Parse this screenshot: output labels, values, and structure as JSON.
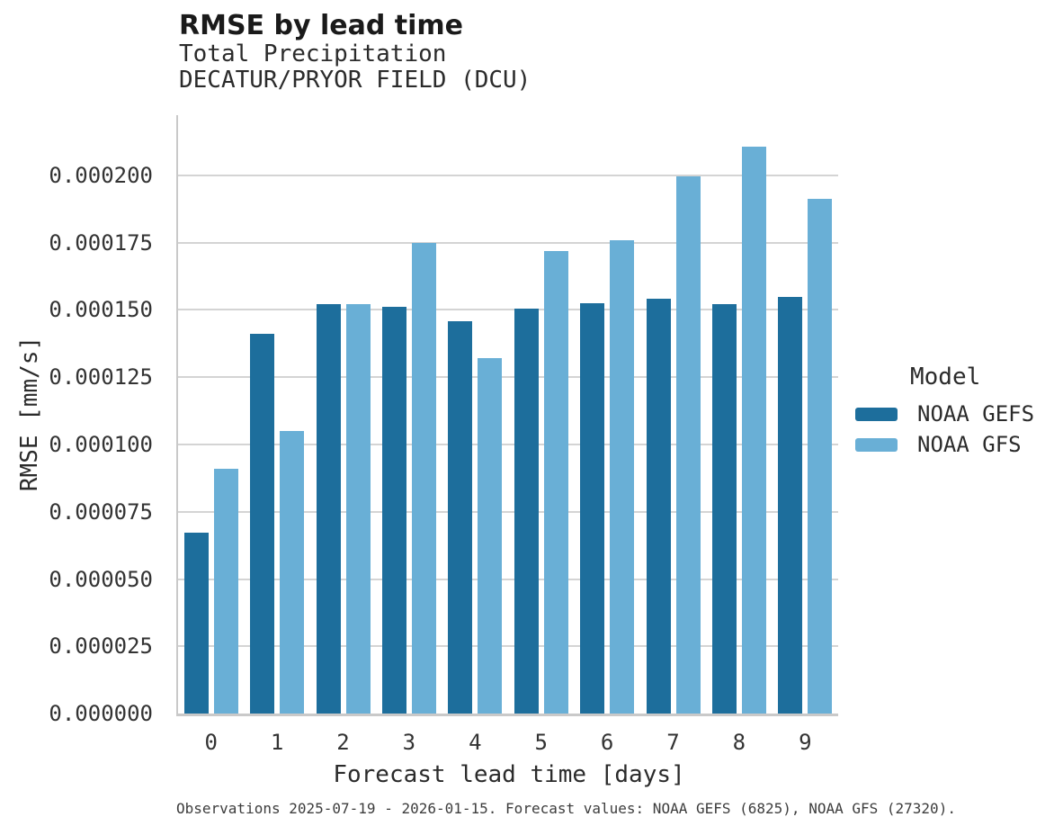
{
  "header": {
    "title": "RMSE by lead time",
    "subtitle_variable": "Total Precipitation",
    "subtitle_station": "DECATUR/PRYOR FIELD (DCU)"
  },
  "legend": {
    "title": "Model"
  },
  "footer": {
    "caption": "Observations 2025-07-19 - 2026-01-15. Forecast values: NOAA GEFS (6825), NOAA GFS (27320)."
  },
  "chart_data": {
    "type": "bar",
    "title": "RMSE by lead time",
    "subtitle": [
      "Total Precipitation",
      "DECATUR/PRYOR FIELD (DCU)"
    ],
    "categories": [
      0,
      1,
      2,
      3,
      4,
      5,
      6,
      7,
      8,
      9
    ],
    "series": [
      {
        "name": "NOAA GEFS",
        "color": "#1d6e9c",
        "values": [
          6.73e-05,
          0.0001411,
          0.0001523,
          0.0001513,
          0.0001459,
          0.0001504,
          0.0001524,
          0.0001543,
          0.0001523,
          0.0001548
        ]
      },
      {
        "name": "NOAA GFS",
        "color": "#69afd6",
        "values": [
          9.1e-05,
          0.0001051,
          0.0001523,
          0.0001749,
          0.000132,
          0.0001718,
          0.000176,
          0.0001998,
          0.0002108,
          0.0001914
        ]
      }
    ],
    "xlabel": "Forecast lead time [days]",
    "ylabel": "RMSE [mm/s]",
    "ylim": [
      0,
      0.0002224
    ],
    "yticks": [
      0.0,
      2.5e-05,
      5e-05,
      7.5e-05,
      0.0001,
      0.000125,
      0.00015,
      0.000175,
      0.0002
    ],
    "ytick_decimals": 6,
    "grid": "horizontal",
    "legend_title": "Model",
    "legend_position": "right",
    "grid_color": "#d4d4d4",
    "axis_color": "#c9c9c9"
  }
}
